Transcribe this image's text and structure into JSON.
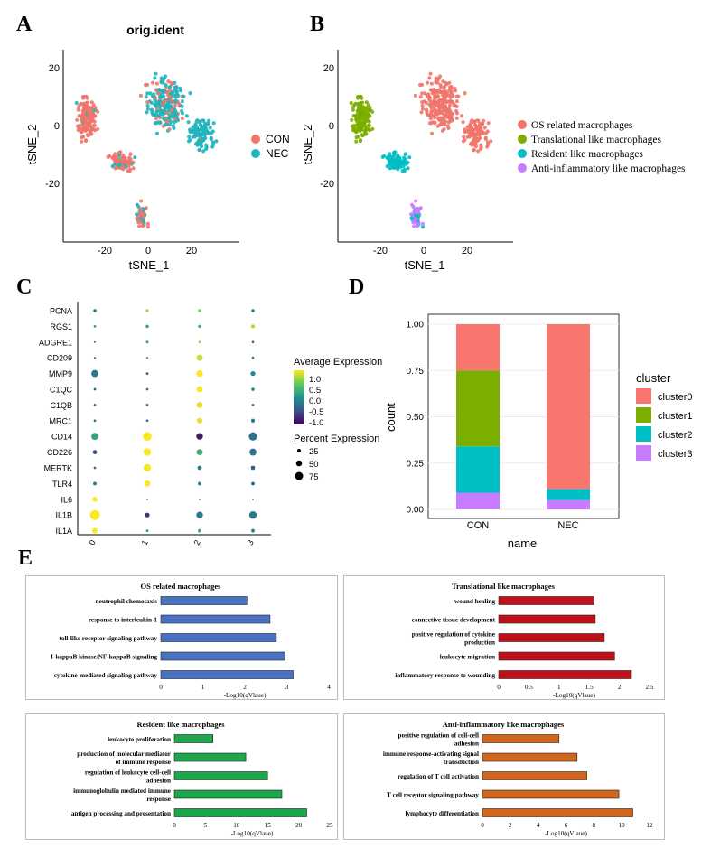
{
  "panels": {
    "A": "A",
    "B": "B",
    "C": "C",
    "D": "D",
    "E": "E"
  },
  "tsneA": {
    "title": "orig.ident",
    "xlabel": "tSNE_1",
    "ylabel": "tSNE_2",
    "xticks": [
      "-20",
      "0",
      "20"
    ],
    "yticks": [
      "20",
      "0",
      "-20"
    ],
    "legend": [
      {
        "label": "CON",
        "color": "#f0756b"
      },
      {
        "label": "NEC",
        "color": "#1fb5bd"
      }
    ]
  },
  "tsneB": {
    "xlabel": "tSNE_1",
    "ylabel": "tSNE_2",
    "xticks": [
      "-20",
      "0",
      "20"
    ],
    "yticks": [
      "20",
      "0",
      "-20"
    ],
    "legend": [
      {
        "label": "OS related  macrophages",
        "color": "#f0756b"
      },
      {
        "label": "Translational like macrophages",
        "color": "#7cae00"
      },
      {
        "label": "Resident like macrophages",
        "color": "#00bfc4"
      },
      {
        "label": "Anti-inflammatory like macrophages",
        "color": "#c77cff"
      }
    ]
  },
  "chart_data": [
    {
      "type": "scatter",
      "title": "orig.ident",
      "xlabel": "tSNE_1",
      "ylabel": "tSNE_2",
      "xlim": [
        -38,
        38
      ],
      "ylim": [
        -43,
        26
      ],
      "series": [
        {
          "name": "CON",
          "color": "#f0756b"
        },
        {
          "name": "NEC",
          "color": "#1fb5bd"
        }
      ],
      "clusters": [
        {
          "name": "left",
          "cx": -28,
          "cy": 3,
          "rx": 6,
          "ry": 10,
          "n": 160
        },
        {
          "name": "lower-band",
          "cx": -12,
          "cy": -12,
          "rx": 9,
          "ry": 4,
          "n": 90
        },
        {
          "name": "center",
          "cx": 8,
          "cy": 8,
          "rx": 12,
          "ry": 13,
          "n": 230
        },
        {
          "name": "right",
          "cx": 25,
          "cy": -3,
          "rx": 9,
          "ry": 7,
          "n": 110
        },
        {
          "name": "bottom",
          "cx": -3,
          "cy": -31,
          "rx": 4,
          "ry": 6,
          "n": 50
        }
      ]
    },
    {
      "type": "scatter",
      "xlabel": "tSNE_1",
      "ylabel": "tSNE_2",
      "xlim": [
        -38,
        38
      ],
      "ylim": [
        -43,
        26
      ],
      "series": [
        {
          "name": "OS related  macrophages",
          "color": "#f0756b"
        },
        {
          "name": "Translational like macrophages",
          "color": "#7cae00"
        },
        {
          "name": "Resident like macrophages",
          "color": "#00bfc4"
        },
        {
          "name": "Anti-inflammatory like macrophages",
          "color": "#c77cff"
        }
      ]
    },
    {
      "type": "dot",
      "genes": [
        "PCNA",
        "RGS1",
        "ADGRE1",
        "CD209",
        "MMP9",
        "C1QC",
        "C1QB",
        "MRC1",
        "CD14",
        "CD226",
        "MERTK",
        "TLR4",
        "IL6",
        "IL1B",
        "IL1A"
      ],
      "clusters": [
        "0",
        "1",
        "2",
        "3"
      ],
      "avg_expression": [
        [
          -0.3,
          0.9,
          0.7,
          -0.2
        ],
        [
          0.2,
          0.2,
          0.3,
          0.9
        ],
        [
          -0.1,
          0.1,
          0.8,
          -0.3
        ],
        [
          -0.3,
          -0.2,
          1.0,
          -0.2
        ],
        [
          -0.2,
          -0.5,
          1.2,
          -0.1
        ],
        [
          -0.4,
          -0.3,
          1.2,
          -0.2
        ],
        [
          -0.3,
          -0.2,
          1.1,
          -0.3
        ],
        [
          -0.3,
          -0.2,
          1.1,
          -0.2
        ],
        [
          0.2,
          1.2,
          -1.0,
          -0.3
        ],
        [
          -0.6,
          1.2,
          0.3,
          -0.3
        ],
        [
          -0.3,
          1.2,
          -0.2,
          -0.4
        ],
        [
          -0.2,
          1.2,
          -0.2,
          -0.3
        ],
        [
          1.2,
          -0.2,
          -0.3,
          -0.3
        ],
        [
          1.2,
          -0.8,
          -0.2,
          -0.2
        ],
        [
          1.2,
          0.0,
          0.3,
          -0.2
        ]
      ],
      "pct_expression": [
        [
          8,
          8,
          8,
          8
        ],
        [
          5,
          8,
          8,
          12
        ],
        [
          3,
          5,
          5,
          5
        ],
        [
          3,
          3,
          30,
          5
        ],
        [
          40,
          5,
          35,
          18
        ],
        [
          5,
          5,
          30,
          8
        ],
        [
          5,
          5,
          30,
          5
        ],
        [
          5,
          5,
          25,
          12
        ],
        [
          40,
          60,
          35,
          55
        ],
        [
          15,
          45,
          30,
          40
        ],
        [
          5,
          45,
          15,
          15
        ],
        [
          10,
          30,
          10,
          10
        ],
        [
          20,
          3,
          3,
          3
        ],
        [
          75,
          18,
          35,
          45
        ],
        [
          25,
          5,
          10,
          10
        ]
      ],
      "legend_color_title": "Average Expression",
      "legend_color_ticks": [
        "1.0",
        "0.5",
        "0.0",
        "-0.5",
        "-1.0"
      ],
      "legend_size_title": "Percent Expression",
      "legend_size_ticks": [
        "25",
        "50",
        "75"
      ]
    },
    {
      "type": "bar",
      "stacked": true,
      "categories": [
        "CON",
        "NEC"
      ],
      "series": [
        {
          "name": "cluster0",
          "color": "#f8766d",
          "values": [
            0.25,
            0.89
          ]
        },
        {
          "name": "cluster1",
          "color": "#7cae00",
          "values": [
            0.41,
            0.0
          ]
        },
        {
          "name": "cluster2",
          "color": "#00bfc4",
          "values": [
            0.25,
            0.06
          ]
        },
        {
          "name": "cluster3",
          "color": "#c77cff",
          "values": [
            0.09,
            0.05
          ]
        }
      ],
      "xlabel": "name",
      "ylabel": "count",
      "ylim": [
        0,
        1
      ],
      "yticks": [
        "1.00",
        "0.75",
        "0.50",
        "0.25",
        "0.00"
      ],
      "legend_title": "cluster"
    },
    {
      "type": "bar",
      "orientation": "horizontal",
      "title": "OS related macrophages",
      "categories": [
        "neutrophil chemotaxis",
        "response to interleukin-1",
        "toll-like receptor signaling pathway",
        "I-kappaB kinase/NF-kappaB signaling",
        "cytokine-mediated signaling pathway"
      ],
      "values": [
        2.05,
        2.6,
        2.75,
        2.95,
        3.15
      ],
      "xlabel": "-Log10(qVlaue)",
      "xlim": [
        0,
        4
      ],
      "xticks": [
        "0",
        "1",
        "2",
        "3",
        "4"
      ],
      "color": "#4a72c4"
    },
    {
      "type": "bar",
      "orientation": "horizontal",
      "title": "Translational like macrophages",
      "categories": [
        "wound healing",
        "connective tissue development",
        "positive regulation of cytokine production",
        "leukocyte migration",
        "inflammatory response to wounding"
      ],
      "values": [
        1.58,
        1.6,
        1.75,
        1.92,
        2.2
      ],
      "xlabel": "-Log10(qVlaue)",
      "xlim": [
        0,
        2.5
      ],
      "xticks": [
        "0",
        "0.5",
        "1",
        "1.5",
        "2",
        "2.5"
      ],
      "color": "#c0101a"
    },
    {
      "type": "bar",
      "orientation": "horizontal",
      "title": "Resident like macrophages",
      "categories": [
        "leukocyte proliferation",
        "production of molecular mediator of immune response",
        "regulation of leukocyte cell-cell adhesion",
        "immunoglobulin mediated immune response",
        "antigen processing and presentation"
      ],
      "values": [
        6.2,
        11.5,
        15.0,
        17.3,
        21.3
      ],
      "xlabel": "-Log10(qVlaue)",
      "xlim": [
        0,
        25
      ],
      "xticks": [
        "0",
        "5",
        "10",
        "15",
        "20",
        "25"
      ],
      "color": "#1ea64c"
    },
    {
      "type": "bar",
      "orientation": "horizontal",
      "title": "Anti-inflammatory like macrophages",
      "categories": [
        "positive regulation of cell-cell adhesion",
        "immune response-activating signal transduction",
        "regulation of T cell activation",
        "T cell receptor signaling pathway",
        "lymphocyte differentiation"
      ],
      "values": [
        5.5,
        6.8,
        7.5,
        9.8,
        10.8
      ],
      "xlabel": "-Log10(qVlaue)",
      "xlim": [
        0,
        12
      ],
      "xticks": [
        "0",
        "2",
        "4",
        "6",
        "8",
        "10",
        "12"
      ],
      "color": "#d1661e"
    }
  ]
}
